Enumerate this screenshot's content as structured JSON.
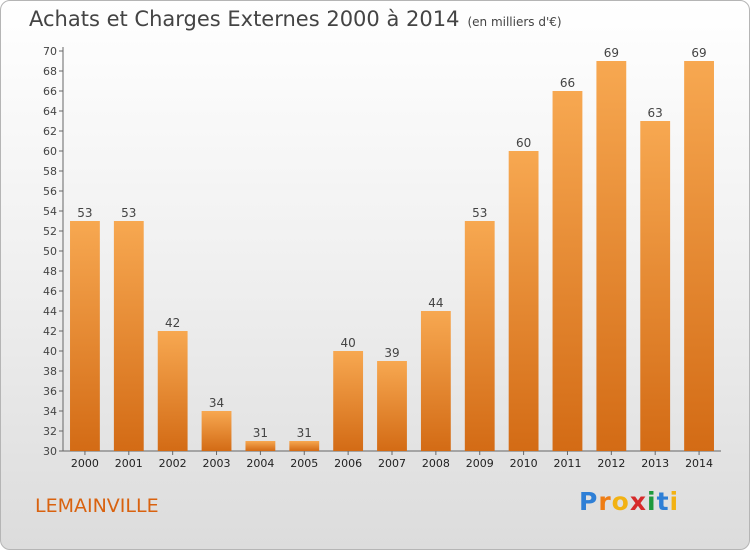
{
  "title": "Achats et Charges Externes 2000 à 2014",
  "unit_note": "(en milliers d'€)",
  "commune": "LEMAINVILLE",
  "logo": {
    "letters": [
      "P",
      "r",
      "o",
      "x",
      "i",
      "t",
      "i"
    ],
    "colors": [
      "#2e7fd6",
      "#ef7d14",
      "#f2b213",
      "#d62a2a",
      "#1e9a3c",
      "#2e7fd6",
      "#f2b213"
    ]
  },
  "colors": {
    "bar_top": "#f7a851",
    "bar_bottom": "#d36b15",
    "text": "#444444",
    "commune": "#d9620f"
  },
  "chart_data": {
    "type": "bar",
    "categories": [
      "2000",
      "2001",
      "2002",
      "2003",
      "2004",
      "2005",
      "2006",
      "2007",
      "2008",
      "2009",
      "2010",
      "2011",
      "2012",
      "2013",
      "2014"
    ],
    "values": [
      53,
      53,
      42,
      34,
      31,
      31,
      40,
      39,
      44,
      53,
      60,
      66,
      69,
      63,
      69
    ],
    "ylim": [
      30,
      70
    ],
    "yticks": [
      30,
      32,
      34,
      36,
      38,
      40,
      42,
      44,
      46,
      48,
      50,
      52,
      54,
      56,
      58,
      60,
      62,
      64,
      66,
      68,
      70
    ],
    "grid": false
  }
}
